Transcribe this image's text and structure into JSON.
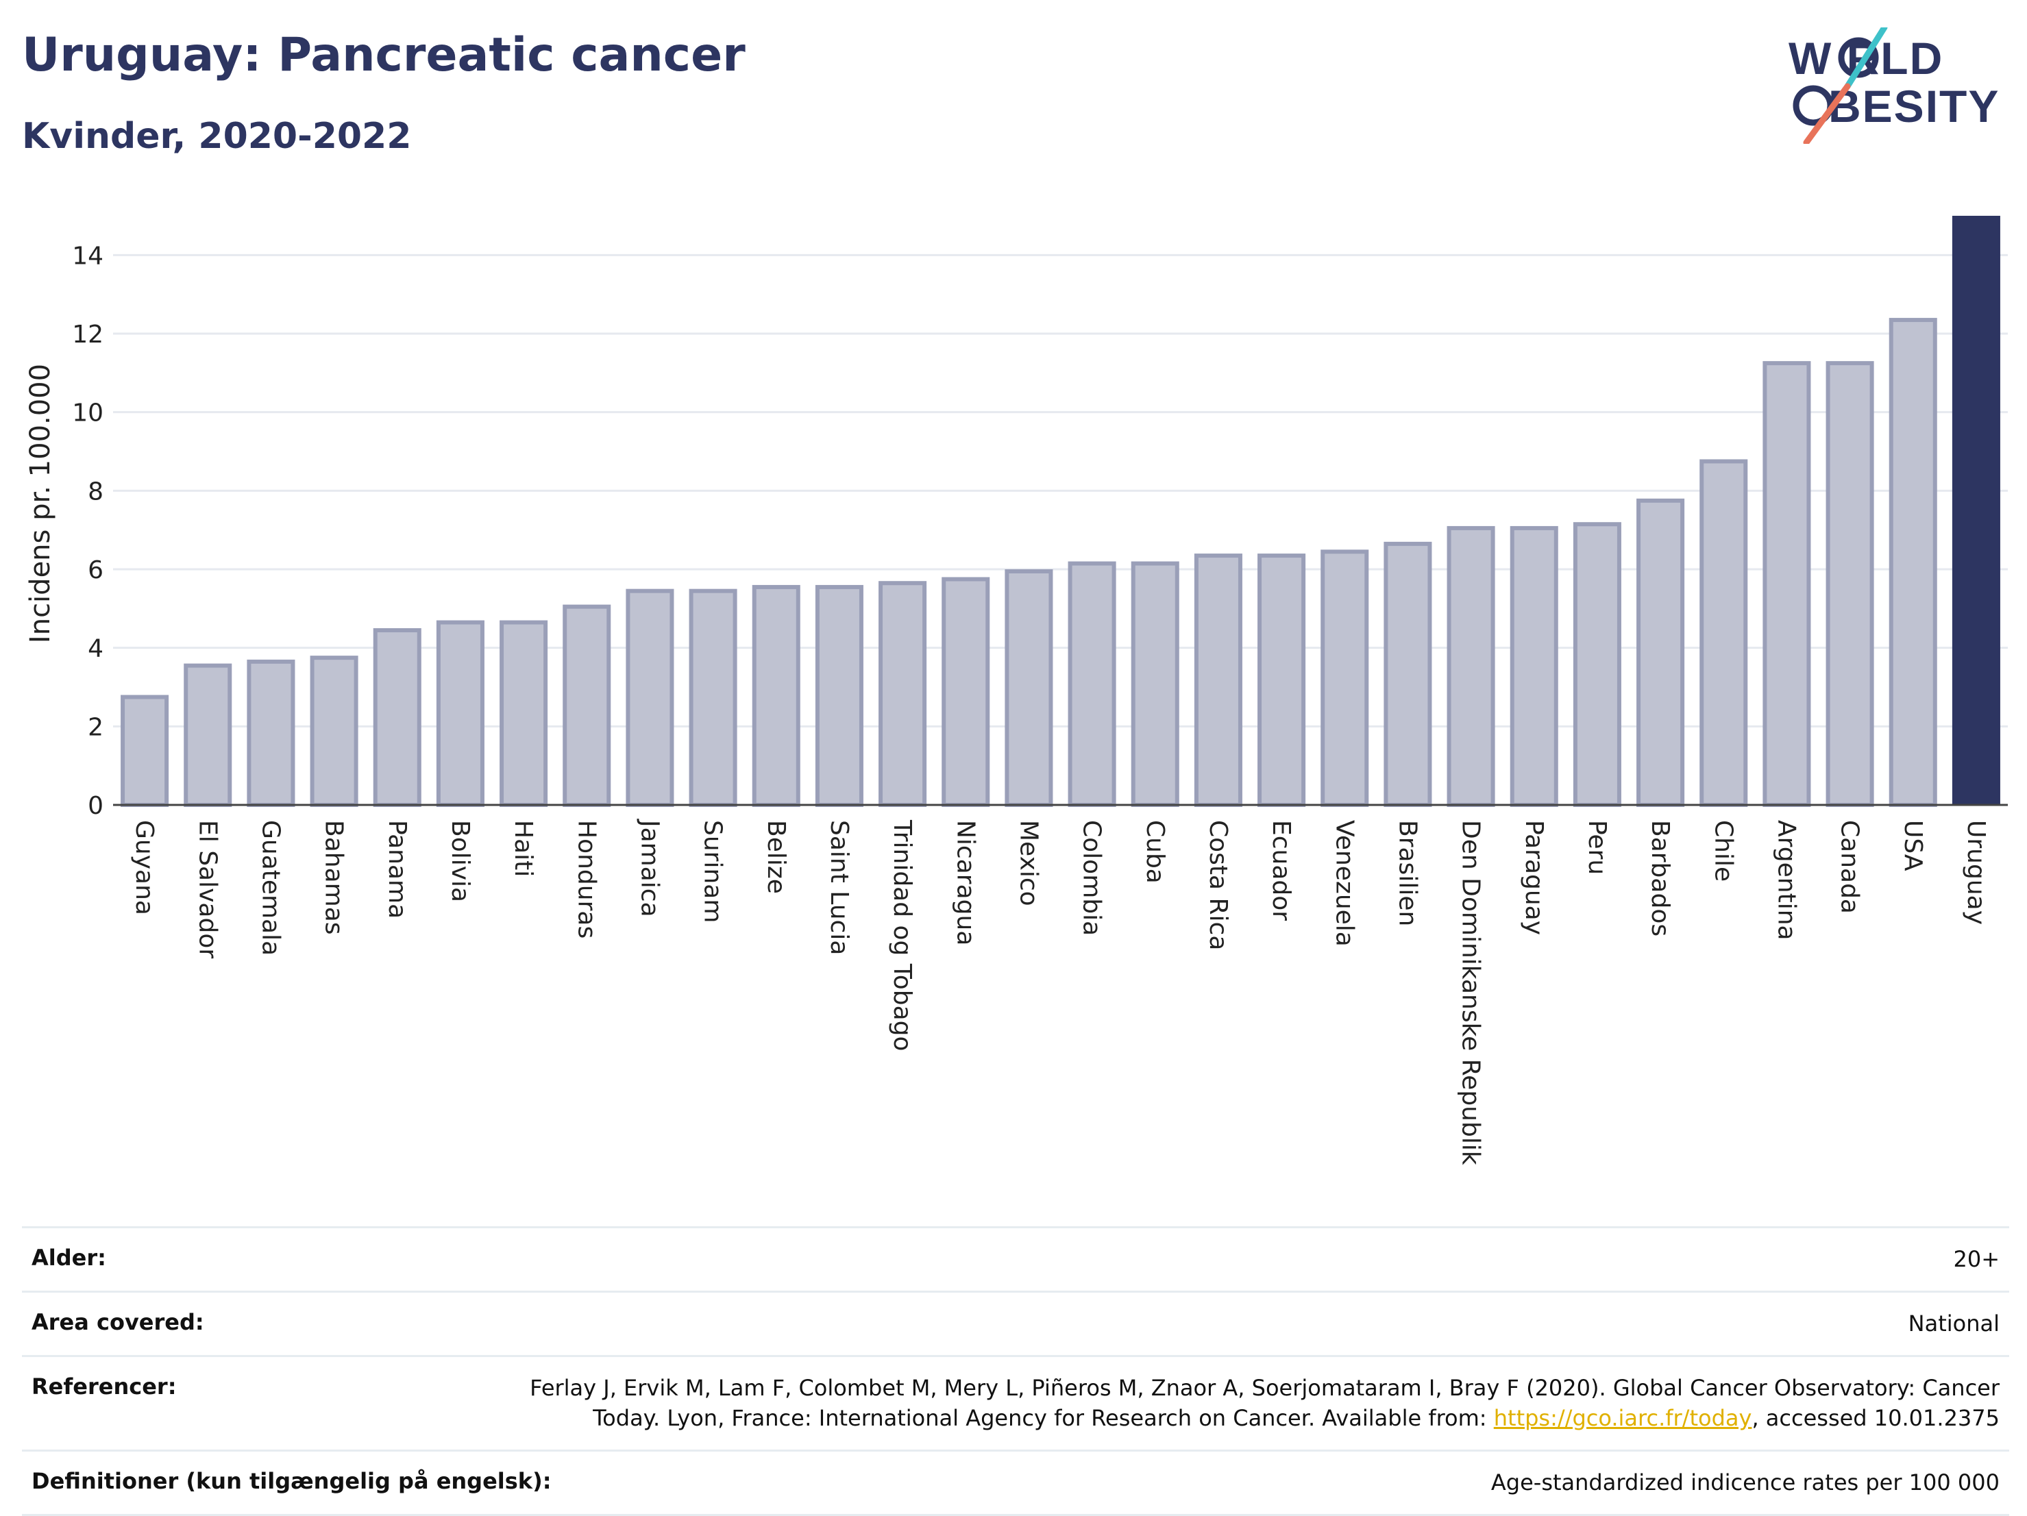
{
  "header": {
    "title": "Uruguay: Pancreatic cancer",
    "subtitle": "Kvinder, 2020-2022"
  },
  "logo": {
    "line1": "W RLD",
    "line2": "BESITY",
    "colors": {
      "text": "#2d3561",
      "slash_top": "#3ec1c9",
      "slash_bottom": "#e8735a"
    }
  },
  "chart_data": {
    "type": "bar",
    "title": "Uruguay: Pancreatic cancer",
    "subtitle": "Kvinder, 2020-2022",
    "ylabel": "Incidens pr. 100.000",
    "xlabel": "",
    "ylim": [
      0,
      15
    ],
    "yticks": [
      0,
      2,
      4,
      6,
      8,
      10,
      12,
      14
    ],
    "grid": true,
    "highlight": "Uruguay",
    "colors": {
      "bar": "#bfc2d1",
      "bar_edge": "#9a9fb8",
      "highlight": "#2d3561"
    },
    "categories": [
      "Guyana",
      "El Salvador",
      "Guatemala",
      "Bahamas",
      "Panama",
      "Bolivia",
      "Haiti",
      "Honduras",
      "Jamaica",
      "Surinam",
      "Belize",
      "Saint Lucia",
      "Trinidad og Tobago",
      "Nicaragua",
      "Mexico",
      "Colombia",
      "Cuba",
      "Costa Rica",
      "Ecuador",
      "Venezuela",
      "Brasilien",
      "Den Dominikanske Republik",
      "Paraguay",
      "Peru",
      "Barbados",
      "Chile",
      "Argentina",
      "Canada",
      "USA",
      "Uruguay"
    ],
    "values": [
      2.8,
      3.6,
      3.7,
      3.8,
      4.5,
      4.7,
      4.7,
      5.1,
      5.5,
      5.5,
      5.6,
      5.6,
      5.7,
      5.8,
      6.0,
      6.2,
      6.2,
      6.4,
      6.4,
      6.5,
      6.7,
      7.1,
      7.1,
      7.2,
      7.8,
      8.8,
      11.3,
      11.3,
      12.4,
      15.0
    ]
  },
  "meta": [
    {
      "label": "Alder:",
      "value": "20+"
    },
    {
      "label": "Area covered:",
      "value": "National"
    },
    {
      "label": "Referencer:",
      "value": "Ferlay J, Ervik M, Lam F, Colombet M, Mery L, Piñeros M, Znaor A, Soerjomataram I, Bray F (2020). Global Cancer Observatory: Cancer Today. Lyon, France: International Agency for Research on Cancer. Available from: ",
      "link": "https://gco.iarc.fr/today",
      "suffix": ", accessed 10.01.2375"
    },
    {
      "label": "Definitioner (kun tilgængelig på engelsk):",
      "value": "Age-standardized indicence rates per 100 000"
    }
  ]
}
